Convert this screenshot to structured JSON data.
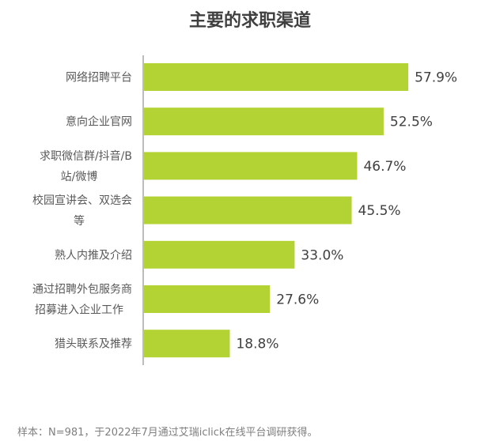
{
  "chart_data": {
    "type": "bar",
    "orientation": "horizontal",
    "title": "主要的求职渠道",
    "categories": [
      [
        "网络招聘平台"
      ],
      [
        "意向企业官网"
      ],
      [
        "求职微信群/抖音/B",
        "站/微博"
      ],
      [
        "校园宣讲会、双选会",
        "等"
      ],
      [
        "熟人内推及介绍"
      ],
      [
        "通过招聘外包服务商",
        "招募进入企业工作"
      ],
      [
        "猎头联系及推荐"
      ]
    ],
    "values": [
      57.9,
      52.5,
      46.7,
      45.5,
      33.0,
      27.6,
      18.8
    ],
    "value_labels": [
      "57.9%",
      "52.5%",
      "46.7%",
      "45.5%",
      "33.0%",
      "27.6%",
      "18.8%"
    ],
    "unit": "%",
    "xlabel": "",
    "ylabel": "",
    "bar_color": "#b3d234",
    "grid": false,
    "legend": "none"
  },
  "note": "样本：N=981，于2022年7月通过艾瑞iclick在线平台调研获得。"
}
